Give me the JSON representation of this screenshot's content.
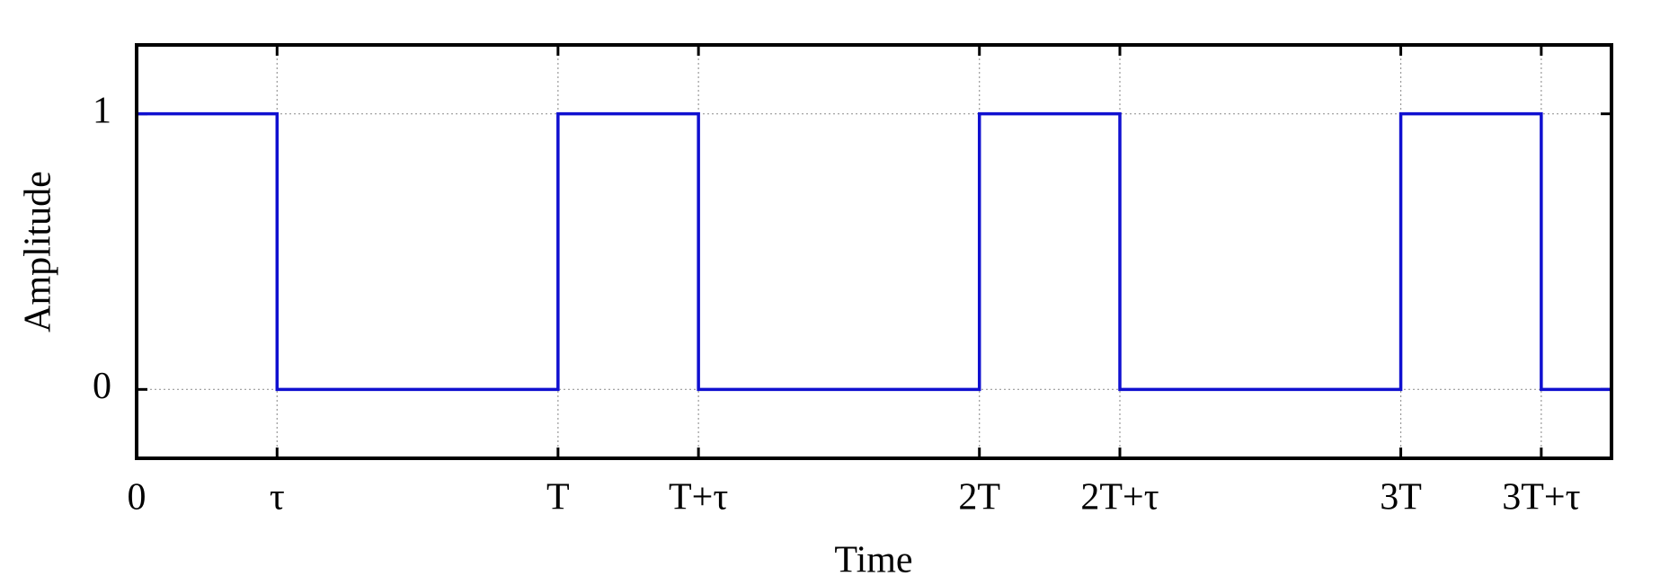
{
  "chart_data": {
    "type": "line",
    "xlabel": "Time",
    "ylabel": "Amplitude",
    "x": [
      0,
      1,
      1,
      3,
      3,
      4,
      4,
      6,
      6,
      7,
      7,
      9,
      9,
      10,
      10,
      10.5
    ],
    "series": [
      {
        "color": "#1010d0",
        "values": [
          1,
          1,
          0,
          0,
          1,
          1,
          0,
          0,
          1,
          1,
          0,
          0,
          1,
          1,
          0,
          0
        ]
      }
    ],
    "xlim": [
      0,
      10.5
    ],
    "xticks": [
      0,
      {
        "value": 1,
        "label": "τ"
      },
      {
        "value": 3,
        "label": "T"
      },
      {
        "value": 4,
        "label": "T+τ"
      },
      {
        "value": 6,
        "label": "2T"
      },
      {
        "value": 7,
        "label": "2T+τ"
      },
      {
        "value": 9,
        "label": "3T"
      },
      {
        "value": 10,
        "label": "3T+τ"
      }
    ],
    "ylim": [
      -0.25,
      1.25
    ],
    "yticks": [
      0,
      1
    ],
    "grid": true
  }
}
